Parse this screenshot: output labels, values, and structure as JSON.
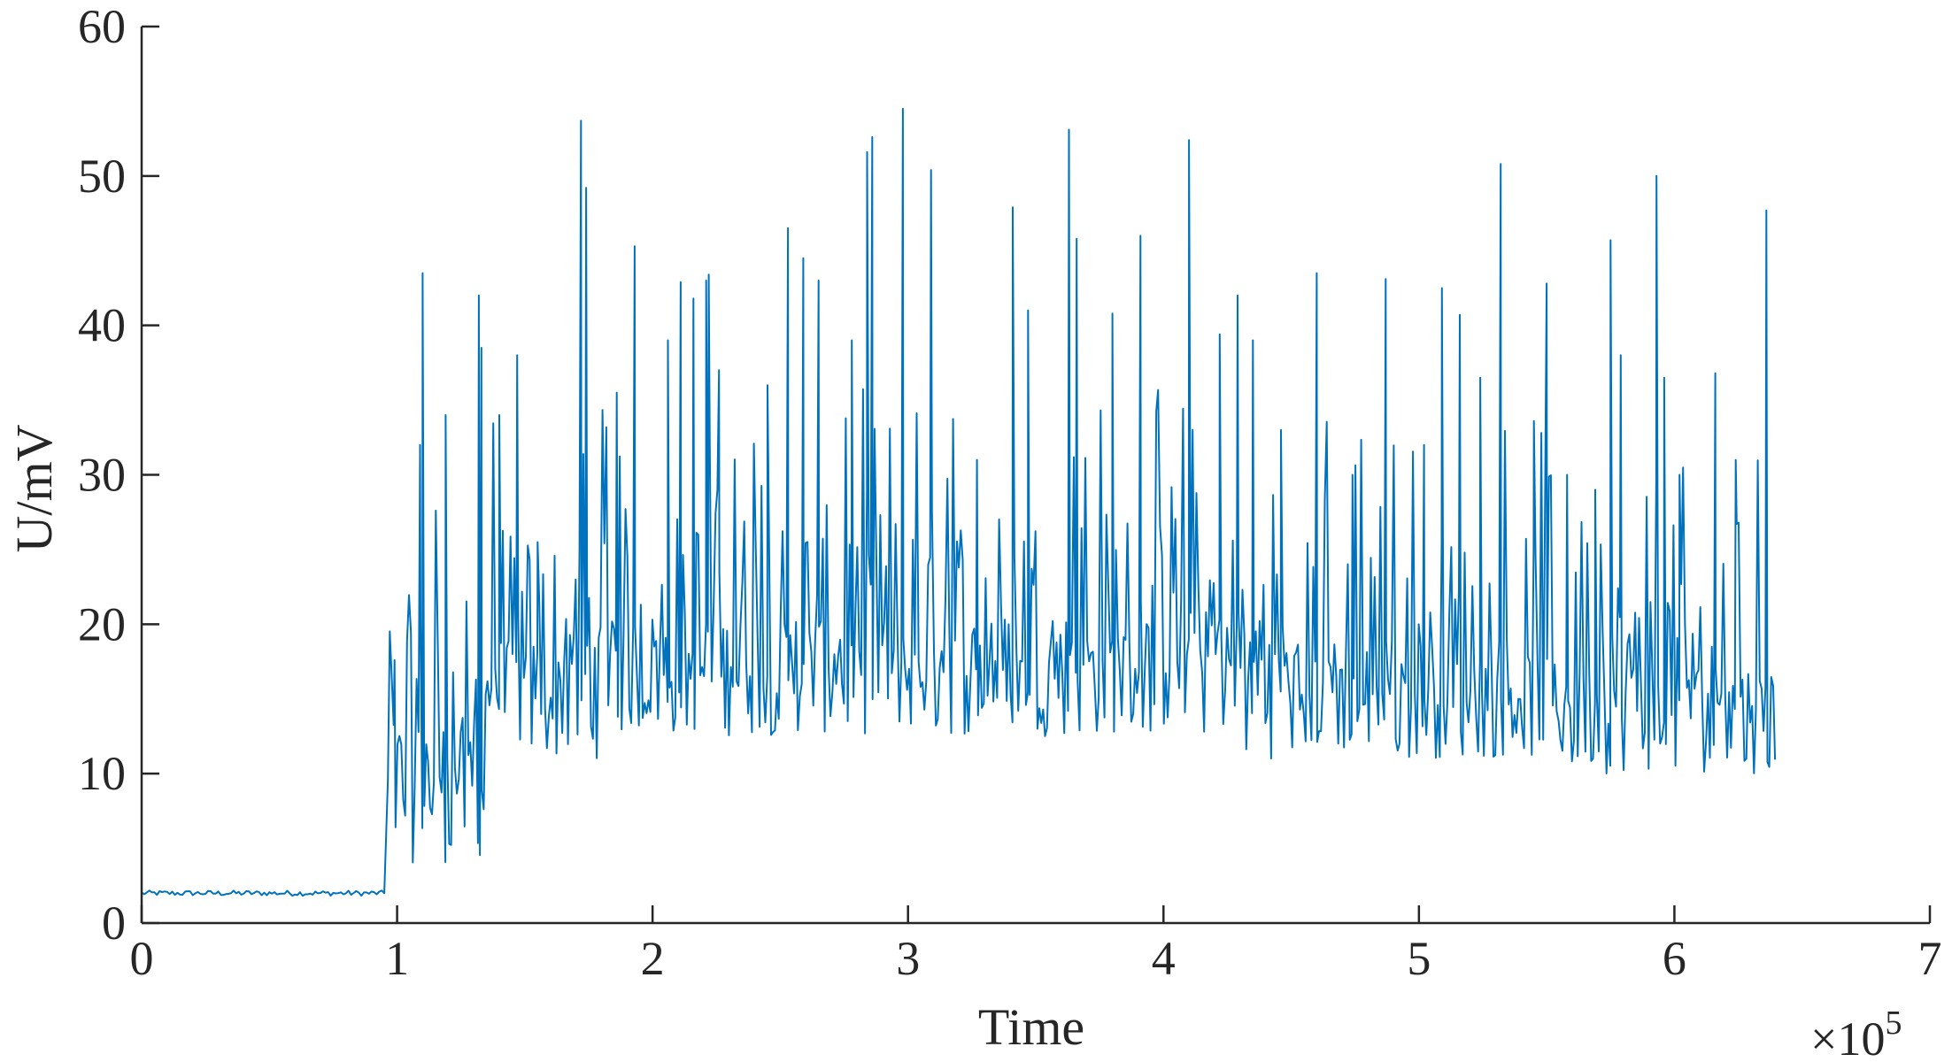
{
  "chart_data": {
    "type": "line",
    "title": "",
    "xlabel": "Time",
    "ylabel": "U/mV",
    "x_exponent_label": "×10",
    "x_exponent_power": "5",
    "xlim": [
      0,
      7
    ],
    "ylim": [
      0,
      60
    ],
    "xticks": [
      0,
      1,
      2,
      3,
      4,
      5,
      6,
      7
    ],
    "yticks": [
      0,
      10,
      20,
      30,
      40,
      50,
      60
    ],
    "xtick_labels": [
      "0",
      "1",
      "2",
      "3",
      "4",
      "5",
      "6",
      "7"
    ],
    "ytick_labels": [
      "0",
      "10",
      "20",
      "30",
      "40",
      "50",
      "60"
    ],
    "grid": false,
    "legend": "none",
    "series_color": "#0072BD",
    "x_unit_scale": 100000,
    "baseline": {
      "x_end": 0.96,
      "value": 2.0
    },
    "data_end_x": 6.4,
    "peaks": [
      {
        "x": 0.99,
        "y": 17.6
      },
      {
        "x": 1.09,
        "y": 32.0
      },
      {
        "x": 1.1,
        "y": 43.5
      },
      {
        "x": 1.19,
        "y": 34.0
      },
      {
        "x": 1.32,
        "y": 42.0
      },
      {
        "x": 1.33,
        "y": 38.5
      },
      {
        "x": 1.4,
        "y": 34.0
      },
      {
        "x": 1.47,
        "y": 38.0
      },
      {
        "x": 1.55,
        "y": 25.5
      },
      {
        "x": 1.72,
        "y": 53.7
      },
      {
        "x": 1.74,
        "y": 49.2
      },
      {
        "x": 1.86,
        "y": 35.5
      },
      {
        "x": 1.93,
        "y": 45.3
      },
      {
        "x": 2.06,
        "y": 39.0
      },
      {
        "x": 2.11,
        "y": 42.9
      },
      {
        "x": 2.16,
        "y": 41.8
      },
      {
        "x": 2.21,
        "y": 43.0
      },
      {
        "x": 2.22,
        "y": 43.4
      },
      {
        "x": 2.26,
        "y": 37.0
      },
      {
        "x": 2.45,
        "y": 36.0
      },
      {
        "x": 2.53,
        "y": 46.5
      },
      {
        "x": 2.59,
        "y": 44.5
      },
      {
        "x": 2.65,
        "y": 43.0
      },
      {
        "x": 2.78,
        "y": 39.0
      },
      {
        "x": 2.84,
        "y": 51.6
      },
      {
        "x": 2.86,
        "y": 52.6
      },
      {
        "x": 2.98,
        "y": 54.5
      },
      {
        "x": 3.09,
        "y": 50.4
      },
      {
        "x": 3.27,
        "y": 31.0
      },
      {
        "x": 3.41,
        "y": 47.9
      },
      {
        "x": 3.47,
        "y": 41.0
      },
      {
        "x": 3.63,
        "y": 53.1
      },
      {
        "x": 3.66,
        "y": 45.8
      },
      {
        "x": 3.8,
        "y": 40.8
      },
      {
        "x": 3.91,
        "y": 46.0
      },
      {
        "x": 4.1,
        "y": 52.4
      },
      {
        "x": 4.22,
        "y": 39.4
      },
      {
        "x": 4.29,
        "y": 42.0
      },
      {
        "x": 4.35,
        "y": 39.0
      },
      {
        "x": 4.46,
        "y": 33.0
      },
      {
        "x": 4.6,
        "y": 43.5
      },
      {
        "x": 4.74,
        "y": 30.0
      },
      {
        "x": 4.87,
        "y": 43.1
      },
      {
        "x": 5.02,
        "y": 32.0
      },
      {
        "x": 5.09,
        "y": 42.5
      },
      {
        "x": 5.16,
        "y": 40.7
      },
      {
        "x": 5.24,
        "y": 36.5
      },
      {
        "x": 5.32,
        "y": 50.8
      },
      {
        "x": 5.45,
        "y": 33.6
      },
      {
        "x": 5.5,
        "y": 42.8
      },
      {
        "x": 5.58,
        "y": 30.0
      },
      {
        "x": 5.69,
        "y": 29.0
      },
      {
        "x": 5.75,
        "y": 45.7
      },
      {
        "x": 5.79,
        "y": 38.0
      },
      {
        "x": 5.93,
        "y": 50.0
      },
      {
        "x": 5.96,
        "y": 36.5
      },
      {
        "x": 6.02,
        "y": 30.0
      },
      {
        "x": 6.16,
        "y": 36.8
      },
      {
        "x": 6.24,
        "y": 31.0
      },
      {
        "x": 6.36,
        "y": 47.7
      }
    ]
  }
}
